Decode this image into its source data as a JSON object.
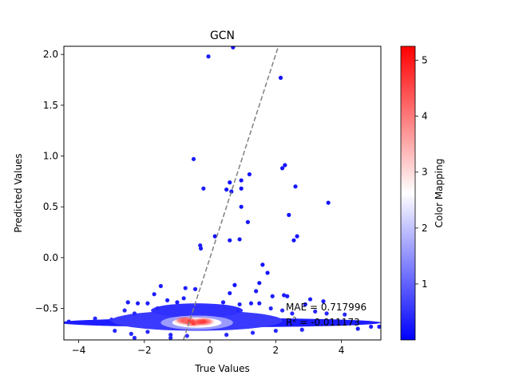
{
  "chart_data": {
    "type": "scatter",
    "title": "GCN",
    "xlabel": "True Values",
    "ylabel": "Predicted Values",
    "xlim": [
      -4.45,
      5.2
    ],
    "ylim": [
      -0.81,
      2.08
    ],
    "xticks": [
      -4,
      -2,
      0,
      2,
      4
    ],
    "xtick_labels": [
      "−4",
      "−2",
      "0",
      "2",
      "4"
    ],
    "yticks": [
      -0.5,
      0.0,
      0.5,
      1.0,
      1.5,
      2.0
    ],
    "ytick_labels": [
      "−0.5",
      "0.0",
      "0.5",
      "1.0",
      "1.5",
      "2.0"
    ],
    "reference_line": "y = x (dashed, gray)",
    "grid": false,
    "colorbar": {
      "label": "Color Mapping",
      "range": [
        0.0,
        5.25
      ],
      "ticks": [
        1,
        2,
        3,
        4,
        5
      ],
      "tick_labels": [
        "1",
        "2",
        "3",
        "4",
        "5"
      ],
      "colormap": "bwr",
      "colors": [
        "#0000ff",
        "#ffffff",
        "#ff0000"
      ]
    },
    "annotations": [
      {
        "text": "MAE = 0.717996"
      },
      {
        "text": "R^2 = -0.011173"
      }
    ],
    "points": [
      {
        "x": -0.05,
        "y": 1.98,
        "c": 0.3
      },
      {
        "x": 0.7,
        "y": 2.07,
        "c": 0.2
      },
      {
        "x": 2.15,
        "y": 1.77,
        "c": 0.2
      },
      {
        "x": -0.5,
        "y": 0.97,
        "c": 0.3
      },
      {
        "x": 2.2,
        "y": 0.88,
        "c": 0.2
      },
      {
        "x": 2.28,
        "y": 0.91,
        "c": 0.2
      },
      {
        "x": 1.2,
        "y": 0.82,
        "c": 0.2
      },
      {
        "x": 0.6,
        "y": 0.74,
        "c": 0.2
      },
      {
        "x": 0.95,
        "y": 0.76,
        "c": 0.2
      },
      {
        "x": 2.6,
        "y": 0.7,
        "c": 0.2
      },
      {
        "x": -0.2,
        "y": 0.68,
        "c": 0.3
      },
      {
        "x": 0.5,
        "y": 0.67,
        "c": 0.2
      },
      {
        "x": 0.65,
        "y": 0.65,
        "c": 0.2
      },
      {
        "x": 0.95,
        "y": 0.68,
        "c": 0.2
      },
      {
        "x": 3.6,
        "y": 0.54,
        "c": 0.2
      },
      {
        "x": 0.95,
        "y": 0.5,
        "c": 0.2
      },
      {
        "x": 2.4,
        "y": 0.42,
        "c": 0.2
      },
      {
        "x": 1.15,
        "y": 0.35,
        "c": 0.2
      },
      {
        "x": 2.65,
        "y": 0.21,
        "c": 0.2
      },
      {
        "x": 0.15,
        "y": 0.21,
        "c": 0.2
      },
      {
        "x": 0.6,
        "y": 0.17,
        "c": 0.2
      },
      {
        "x": 0.9,
        "y": 0.18,
        "c": 0.2
      },
      {
        "x": 2.55,
        "y": 0.17,
        "c": 0.2
      },
      {
        "x": -0.3,
        "y": 0.12,
        "c": 0.3
      },
      {
        "x": -0.28,
        "y": 0.09,
        "c": 0.3
      },
      {
        "x": 1.6,
        "y": -0.07,
        "c": 0.2
      },
      {
        "x": 1.75,
        "y": -0.15,
        "c": 0.2
      },
      {
        "x": 1.5,
        "y": -0.25,
        "c": 0.2
      },
      {
        "x": 0.75,
        "y": -0.27,
        "c": 0.2
      },
      {
        "x": -1.5,
        "y": -0.28,
        "c": 0.3
      },
      {
        "x": -1.7,
        "y": -0.36,
        "c": 0.3
      },
      {
        "x": -0.75,
        "y": -0.3,
        "c": 0.3
      },
      {
        "x": -0.45,
        "y": -0.31,
        "c": 0.3
      },
      {
        "x": -0.8,
        "y": -0.4,
        "c": 0.3
      },
      {
        "x": 0.6,
        "y": -0.35,
        "c": 0.3
      },
      {
        "x": 1.4,
        "y": -0.33,
        "c": 0.3
      },
      {
        "x": 1.9,
        "y": -0.38,
        "c": 0.3
      },
      {
        "x": 2.25,
        "y": -0.37,
        "c": 0.3
      },
      {
        "x": 2.35,
        "y": -0.38,
        "c": 0.3
      },
      {
        "x": 3.05,
        "y": -0.41,
        "c": 0.3
      },
      {
        "x": 3.45,
        "y": -0.43,
        "c": 0.3
      },
      {
        "x": 2.9,
        "y": -0.46,
        "c": 0.3
      },
      {
        "x": 1.5,
        "y": -0.45,
        "c": 0.3
      },
      {
        "x": 1.25,
        "y": -0.45,
        "c": 0.3
      },
      {
        "x": -2.5,
        "y": -0.44,
        "c": 0.3
      },
      {
        "x": -2.2,
        "y": -0.45,
        "c": 0.3
      },
      {
        "x": -1.9,
        "y": -0.45,
        "c": 0.3
      },
      {
        "x": -1.3,
        "y": -0.42,
        "c": 0.3
      },
      {
        "x": -1.0,
        "y": -0.44,
        "c": 0.3
      },
      {
        "x": 0.4,
        "y": -0.44,
        "c": 0.3
      },
      {
        "x": 0.9,
        "y": -0.46,
        "c": 0.3
      },
      {
        "x": -2.6,
        "y": -0.52,
        "c": 0.4
      },
      {
        "x": -2.3,
        "y": -0.55,
        "c": 0.4
      },
      {
        "x": -1.6,
        "y": -0.5,
        "c": 0.4
      },
      {
        "x": 0.85,
        "y": -0.52,
        "c": 0.4
      },
      {
        "x": 1.85,
        "y": -0.5,
        "c": 0.4
      },
      {
        "x": 2.2,
        "y": -0.52,
        "c": 0.4
      },
      {
        "x": 2.5,
        "y": -0.55,
        "c": 0.4
      },
      {
        "x": 3.2,
        "y": -0.53,
        "c": 0.4
      },
      {
        "x": 3.55,
        "y": -0.55,
        "c": 0.4
      },
      {
        "x": 4.1,
        "y": -0.56,
        "c": 0.4
      },
      {
        "x": -3.5,
        "y": -0.6,
        "c": 0.4
      },
      {
        "x": -4.3,
        "y": -0.63,
        "c": 0.3
      },
      {
        "x": -3.0,
        "y": -0.61,
        "c": 0.5
      },
      {
        "x": -2.9,
        "y": -0.72,
        "c": 0.4
      },
      {
        "x": -2.4,
        "y": -0.75,
        "c": 0.4
      },
      {
        "x": -1.9,
        "y": -0.73,
        "c": 0.4
      },
      {
        "x": -1.2,
        "y": -0.76,
        "c": 0.4
      },
      {
        "x": -0.7,
        "y": -0.77,
        "c": 0.5
      },
      {
        "x": -2.3,
        "y": -0.79,
        "c": 0.4
      },
      {
        "x": -1.2,
        "y": -0.79,
        "c": 0.4
      },
      {
        "x": 0.5,
        "y": -0.76,
        "c": 0.4
      },
      {
        "x": 1.3,
        "y": -0.74,
        "c": 0.4
      },
      {
        "x": 2.0,
        "y": -0.72,
        "c": 0.4
      },
      {
        "x": 2.8,
        "y": -0.71,
        "c": 0.4
      },
      {
        "x": 4.5,
        "y": -0.7,
        "c": 0.3
      },
      {
        "x": 4.9,
        "y": -0.68,
        "c": 0.3
      },
      {
        "x": 5.15,
        "y": -0.68,
        "c": 0.3
      }
    ],
    "density_cores": [
      {
        "x": -0.5,
        "y": -0.64,
        "c": 5.2
      },
      {
        "x": -0.2,
        "y": -0.63,
        "c": 4.6
      },
      {
        "x": -0.75,
        "y": -0.62,
        "c": 4.2
      }
    ]
  }
}
